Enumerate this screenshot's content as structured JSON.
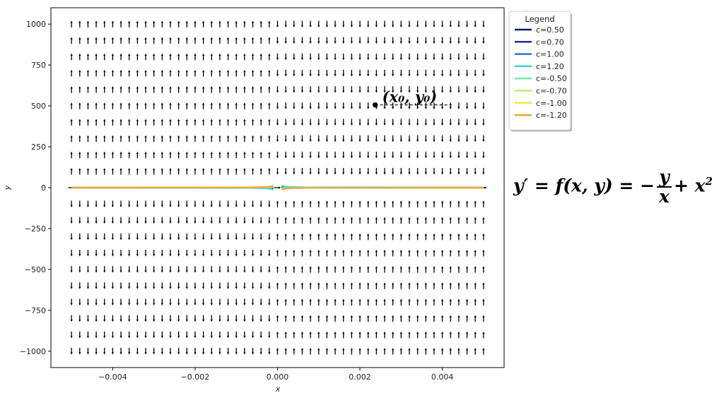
{
  "chart_data": {
    "type": "line",
    "subtype": "slope-field-with-solution-curves",
    "title": "",
    "xlabel": "x",
    "ylabel": "y",
    "xlim": [
      -0.0055,
      0.0055
    ],
    "ylim": [
      -1100,
      1100
    ],
    "xticks": [
      -0.004,
      -0.002,
      0.0,
      0.002,
      0.004
    ],
    "xtick_labels": [
      "−0.004",
      "−0.002",
      "0.000",
      "0.002",
      "0.004"
    ],
    "yticks": [
      -1000,
      -750,
      -500,
      -250,
      0,
      250,
      500,
      750,
      1000
    ],
    "ytick_labels": [
      "−1000",
      "−750",
      "−500",
      "−250",
      "0",
      "250",
      "500",
      "750",
      "1000"
    ],
    "field": {
      "description": "direction field of y' = -y/x + x^2",
      "x_range": [
        -0.005,
        0.005
      ],
      "y_range": [
        -1000,
        1000
      ],
      "nx": 51,
      "ny": 21
    },
    "series": [
      {
        "name": "c=0.50",
        "c": 0.5,
        "color": "#0d1a5e"
      },
      {
        "name": "c=0.70",
        "c": 0.7,
        "color": "#1d2f9c"
      },
      {
        "name": "c=1.00",
        "c": 1.0,
        "color": "#1f78c8"
      },
      {
        "name": "c=1.20",
        "c": 1.2,
        "color": "#3fd0da"
      },
      {
        "name": "c=-0.50",
        "c": -0.5,
        "color": "#6cecb0"
      },
      {
        "name": "c=-0.70",
        "c": -0.7,
        "color": "#b8f06a"
      },
      {
        "name": "c=-1.00",
        "c": -1.0,
        "color": "#f0ec3c"
      },
      {
        "name": "c=-1.20",
        "c": -1.2,
        "color": "#e8a83a"
      }
    ],
    "curve_scale": 0.001,
    "legend": {
      "title": "Legend",
      "placement": "outside-top-right"
    },
    "annotation": {
      "text": "(x₀, y₀)",
      "point": [
        0.00237,
        506
      ]
    }
  },
  "equation": {
    "lhs": "y′ = f(x, y) = −",
    "numerator": "y",
    "denominator": "x",
    "rhs": "+ x",
    "exponent": "2"
  },
  "colors": {
    "arrow": "#000000",
    "axes": "#000000",
    "background": "#ffffff"
  }
}
